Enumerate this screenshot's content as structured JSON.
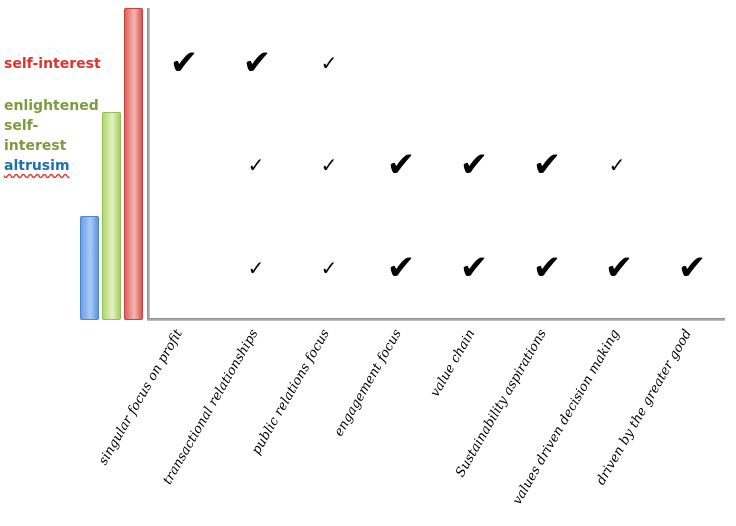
{
  "legend": {
    "self_interest": "self-interest",
    "enlightened": "enlightened self-interest",
    "altruism": "altrusim"
  },
  "colors": {
    "self_interest": "#e2322c",
    "enlightened": "#7d9a3d",
    "altruism": "#1f6fb2"
  },
  "check_symbol": "✔",
  "check_symbol_small": "✓",
  "categories": [
    "singular focus on profit",
    "transactional relationships",
    "public relations focus",
    "engagement focus",
    "value chain",
    "Sustainability aspirations",
    "values driven decision making",
    "driven by the greater good"
  ]
}
